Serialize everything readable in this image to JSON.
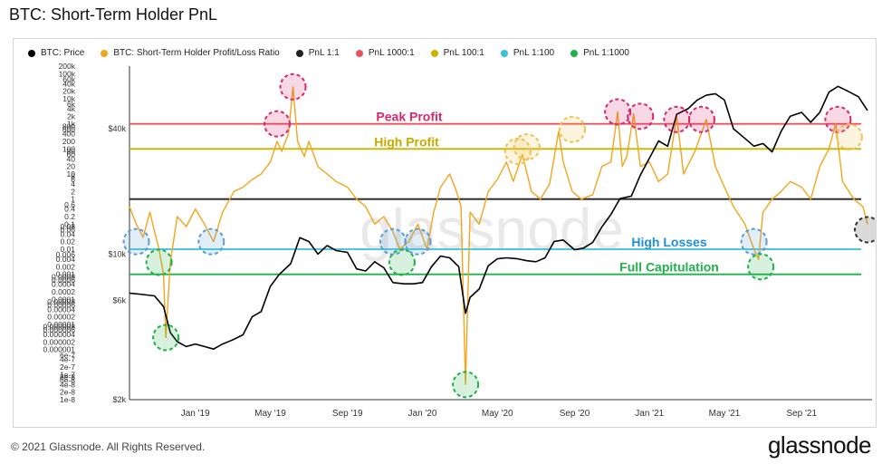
{
  "title": "BTC: Short-Term Holder PnL",
  "legend": [
    {
      "label": "BTC: Price",
      "color": "#000000"
    },
    {
      "label": "BTC: Short-Term Holder Profit/Loss Ratio",
      "color": "#f2a51a"
    },
    {
      "label": "PnL 1:1",
      "color": "#222222"
    },
    {
      "label": "PnL 1000:1",
      "color": "#e8535b"
    },
    {
      "label": "PnL 100:1",
      "color": "#c9b400"
    },
    {
      "label": "PnL 1:100",
      "color": "#35c1d9"
    },
    {
      "label": "PnL 1:1000",
      "color": "#1fb04a"
    }
  ],
  "footer": "© 2021 Glassnode. All Rights Reserved.",
  "brand": "glassnode",
  "watermark": "glassnode",
  "chart_data": {
    "type": "line",
    "title": "BTC: Short-Term Holder PnL",
    "x_ticks": [
      "Jan '19",
      "May '19",
      "Sep '19",
      "Jan '20",
      "May '20",
      "Sep '20",
      "Jan '21",
      "May '21",
      "Sep '21"
    ],
    "left_axis_ticks": [
      "200k",
      "100k",
      "60k",
      "40k",
      "20k",
      "10k",
      "6k",
      "4k",
      "2k",
      "1k",
      "800",
      "600",
      "400",
      "200",
      "100",
      "80",
      "60",
      "40",
      "20",
      "10",
      "8",
      "6",
      "4",
      "2",
      "1",
      "0.6",
      "0.4",
      "0.2",
      "0.1",
      "0.08",
      "0.06",
      "0.04",
      "0.02",
      "0.01",
      "0.006",
      "0.004",
      "0.002",
      "0.001",
      "0.0008",
      "0.0006",
      "0.0004",
      "0.0002",
      "0.0001",
      "0.00008",
      "0.00006",
      "0.00004",
      "0.00002",
      "0.00001",
      "0.000008",
      "0.000006",
      "0.000004",
      "0.000002",
      "0.000001",
      "6e-7",
      "4e-7",
      "2e-7",
      "1e-7",
      "8e-8",
      "6e-8",
      "4e-8",
      "2e-8",
      "1e-8"
    ],
    "right_axis_ticks": [
      "$40k",
      "$10k",
      "$6k",
      "$2k"
    ],
    "reference_lines": [
      {
        "name": "PnL 1000:1",
        "value": 1000,
        "color": "#e8535b",
        "label": "Peak Profit"
      },
      {
        "name": "PnL 100:1",
        "value": 100,
        "color": "#c9b400",
        "label": "High Profit"
      },
      {
        "name": "PnL 1:1",
        "value": 1,
        "color": "#222222",
        "label": ""
      },
      {
        "name": "PnL 1:100",
        "value": 0.01,
        "color": "#35c1d9",
        "label": "High Losses"
      },
      {
        "name": "PnL 1:1000",
        "value": 0.001,
        "color": "#1fb04a",
        "label": "Full Capitulation"
      }
    ],
    "series": [
      {
        "name": "BTC: Price",
        "color": "#000000",
        "points": [
          [
            2018.71,
            6500
          ],
          [
            2018.77,
            6400
          ],
          [
            2018.82,
            6300
          ],
          [
            2018.86,
            5600
          ],
          [
            2018.89,
            4200
          ],
          [
            2018.92,
            3800
          ],
          [
            2018.96,
            3600
          ],
          [
            2019.0,
            3700
          ],
          [
            2019.04,
            3600
          ],
          [
            2019.08,
            3500
          ],
          [
            2019.12,
            3700
          ],
          [
            2019.17,
            3900
          ],
          [
            2019.21,
            4100
          ],
          [
            2019.25,
            5000
          ],
          [
            2019.29,
            5300
          ],
          [
            2019.33,
            7000
          ],
          [
            2019.37,
            8000
          ],
          [
            2019.42,
            9000
          ],
          [
            2019.46,
            12000
          ],
          [
            2019.5,
            11500
          ],
          [
            2019.54,
            10000
          ],
          [
            2019.58,
            11000
          ],
          [
            2019.62,
            10400
          ],
          [
            2019.67,
            10200
          ],
          [
            2019.71,
            8500
          ],
          [
            2019.75,
            8300
          ],
          [
            2019.79,
            9200
          ],
          [
            2019.83,
            8600
          ],
          [
            2019.87,
            7300
          ],
          [
            2019.92,
            7200
          ],
          [
            2019.96,
            7200
          ],
          [
            2020.0,
            7300
          ],
          [
            2020.04,
            8700
          ],
          [
            2020.08,
            9800
          ],
          [
            2020.12,
            9600
          ],
          [
            2020.16,
            8700
          ],
          [
            2020.19,
            5200
          ],
          [
            2020.21,
            6200
          ],
          [
            2020.25,
            6800
          ],
          [
            2020.29,
            8800
          ],
          [
            2020.33,
            9500
          ],
          [
            2020.37,
            9600
          ],
          [
            2020.42,
            9500
          ],
          [
            2020.46,
            9300
          ],
          [
            2020.5,
            9200
          ],
          [
            2020.54,
            9600
          ],
          [
            2020.58,
            11500
          ],
          [
            2020.62,
            11700
          ],
          [
            2020.67,
            10500
          ],
          [
            2020.71,
            10700
          ],
          [
            2020.75,
            11400
          ],
          [
            2020.79,
            13500
          ],
          [
            2020.83,
            15500
          ],
          [
            2020.87,
            18500
          ],
          [
            2020.92,
            19000
          ],
          [
            2020.96,
            24000
          ],
          [
            2021.0,
            29000
          ],
          [
            2021.04,
            35000
          ],
          [
            2021.08,
            33000
          ],
          [
            2021.12,
            47000
          ],
          [
            2021.17,
            50000
          ],
          [
            2021.21,
            55000
          ],
          [
            2021.25,
            58000
          ],
          [
            2021.29,
            59000
          ],
          [
            2021.33,
            55000
          ],
          [
            2021.37,
            40000
          ],
          [
            2021.42,
            36000
          ],
          [
            2021.46,
            33000
          ],
          [
            2021.5,
            34000
          ],
          [
            2021.54,
            31000
          ],
          [
            2021.58,
            39000
          ],
          [
            2021.62,
            46000
          ],
          [
            2021.67,
            48000
          ],
          [
            2021.71,
            43000
          ],
          [
            2021.75,
            48000
          ],
          [
            2021.79,
            60000
          ],
          [
            2021.83,
            64000
          ],
          [
            2021.87,
            61000
          ],
          [
            2021.92,
            57000
          ],
          [
            2021.96,
            49000
          ]
        ]
      },
      {
        "name": "BTC: Short-Term Holder Profit/Loss Ratio",
        "color": "#f2a51a",
        "points": [
          [
            2018.71,
            0.5
          ],
          [
            2018.74,
            0.1
          ],
          [
            2018.77,
            0.03
          ],
          [
            2018.8,
            0.3
          ],
          [
            2018.82,
            0.05
          ],
          [
            2018.84,
            0.01
          ],
          [
            2018.86,
            0.001
          ],
          [
            2018.87,
            3e-06
          ],
          [
            2018.89,
            0.003
          ],
          [
            2018.92,
            0.2
          ],
          [
            2018.96,
            0.08
          ],
          [
            2019.0,
            0.4
          ],
          [
            2019.04,
            0.1
          ],
          [
            2019.08,
            0.02
          ],
          [
            2019.12,
            0.3
          ],
          [
            2019.17,
            2
          ],
          [
            2019.21,
            3
          ],
          [
            2019.25,
            6
          ],
          [
            2019.29,
            10
          ],
          [
            2019.33,
            30
          ],
          [
            2019.36,
            200
          ],
          [
            2019.38,
            80
          ],
          [
            2019.41,
            400
          ],
          [
            2019.43,
            30000
          ],
          [
            2019.45,
            200
          ],
          [
            2019.48,
            50
          ],
          [
            2019.5,
            200
          ],
          [
            2019.54,
            20
          ],
          [
            2019.58,
            10
          ],
          [
            2019.62,
            5
          ],
          [
            2019.67,
            3
          ],
          [
            2019.71,
            1
          ],
          [
            2019.75,
            0.5
          ],
          [
            2019.79,
            0.1
          ],
          [
            2019.83,
            0.2
          ],
          [
            2019.87,
            0.05
          ],
          [
            2019.9,
            0.01
          ],
          [
            2019.94,
            0.02
          ],
          [
            2019.98,
            0.1
          ],
          [
            2020.02,
            0.01
          ],
          [
            2020.05,
            0.3
          ],
          [
            2020.08,
            3
          ],
          [
            2020.12,
            10
          ],
          [
            2020.15,
            2
          ],
          [
            2020.17,
            0.5
          ],
          [
            2020.19,
            4e-08
          ],
          [
            2020.21,
            0.3
          ],
          [
            2020.25,
            0.1
          ],
          [
            2020.29,
            2
          ],
          [
            2020.33,
            6
          ],
          [
            2020.37,
            30
          ],
          [
            2020.4,
            5
          ],
          [
            2020.44,
            60
          ],
          [
            2020.48,
            2
          ],
          [
            2020.52,
            1
          ],
          [
            2020.56,
            4
          ],
          [
            2020.6,
            500
          ],
          [
            2020.62,
            30
          ],
          [
            2020.66,
            2
          ],
          [
            2020.7,
            1
          ],
          [
            2020.75,
            1.5
          ],
          [
            2020.79,
            20
          ],
          [
            2020.83,
            30
          ],
          [
            2020.86,
            3000
          ],
          [
            2020.88,
            20
          ],
          [
            2020.9,
            50
          ],
          [
            2020.93,
            2500
          ],
          [
            2020.96,
            20
          ],
          [
            2021.0,
            30
          ],
          [
            2021.04,
            5
          ],
          [
            2021.08,
            10
          ],
          [
            2021.12,
            2000
          ],
          [
            2021.15,
            10
          ],
          [
            2021.2,
            80
          ],
          [
            2021.25,
            1500
          ],
          [
            2021.29,
            20
          ],
          [
            2021.33,
            3
          ],
          [
            2021.37,
            0.5
          ],
          [
            2021.42,
            0.1
          ],
          [
            2021.46,
            0.01
          ],
          [
            2021.48,
            0.004
          ],
          [
            2021.5,
            0.3
          ],
          [
            2021.54,
            1
          ],
          [
            2021.58,
            2
          ],
          [
            2021.62,
            5
          ],
          [
            2021.67,
            3
          ],
          [
            2021.71,
            1
          ],
          [
            2021.75,
            20
          ],
          [
            2021.79,
            100
          ],
          [
            2021.82,
            1000
          ],
          [
            2021.85,
            5
          ],
          [
            2021.9,
            1
          ],
          [
            2021.94,
            0.5
          ],
          [
            2021.96,
            0.1
          ]
        ]
      }
    ],
    "annotations": [
      "Peak Profit",
      "High Profit",
      "High Losses",
      "Full Capitulation"
    ],
    "markers": [
      {
        "date": 2018.74,
        "value": 0.02,
        "color": "#5b9bd5"
      },
      {
        "date": 2018.84,
        "value": 0.003,
        "color": "#1fb04a"
      },
      {
        "date": 2018.87,
        "value": 3e-06,
        "color": "#1fb04a"
      },
      {
        "date": 2019.07,
        "value": 0.02,
        "color": "#5b9bd5"
      },
      {
        "date": 2019.36,
        "value": 1000,
        "color": "#d6286e"
      },
      {
        "date": 2019.43,
        "value": 30000,
        "color": "#d6286e"
      },
      {
        "date": 2019.87,
        "value": 0.02,
        "color": "#5b9bd5"
      },
      {
        "date": 2019.91,
        "value": 0.003,
        "color": "#1fb04a"
      },
      {
        "date": 2019.98,
        "value": 0.02,
        "color": "#5b9bd5"
      },
      {
        "date": 2020.19,
        "value": 4e-08,
        "color": "#1fb04a"
      },
      {
        "date": 2020.42,
        "value": 80,
        "color": "#f2c14e"
      },
      {
        "date": 2020.46,
        "value": 120,
        "color": "#f2c14e"
      },
      {
        "date": 2020.66,
        "value": 600,
        "color": "#f2c14e"
      },
      {
        "date": 2020.86,
        "value": 3000,
        "color": "#d6286e"
      },
      {
        "date": 2020.96,
        "value": 2000,
        "color": "#d6286e"
      },
      {
        "date": 2021.12,
        "value": 1500,
        "color": "#d6286e"
      },
      {
        "date": 2021.23,
        "value": 1500,
        "color": "#d6286e"
      },
      {
        "date": 2021.46,
        "value": 0.02,
        "color": "#5b9bd5"
      },
      {
        "date": 2021.49,
        "value": 0.002,
        "color": "#1fb04a"
      },
      {
        "date": 2021.83,
        "value": 1500,
        "color": "#d6286e"
      },
      {
        "date": 2021.88,
        "value": 300,
        "color": "#f2c14e"
      },
      {
        "date": 2021.96,
        "value": 0.06,
        "color": "#333333"
      }
    ]
  }
}
